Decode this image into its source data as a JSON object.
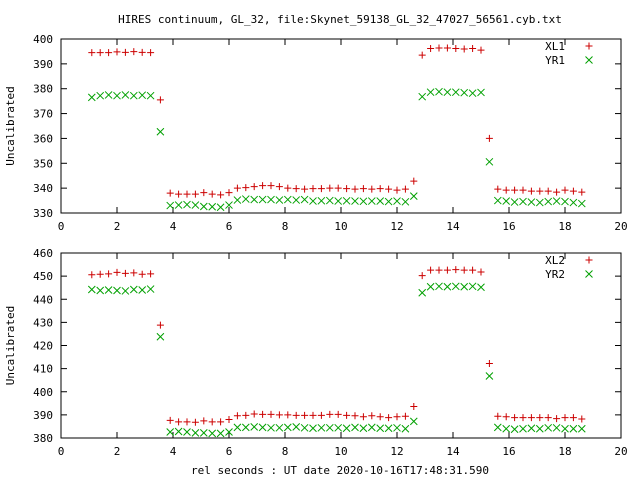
{
  "title": "HIRES continuum, GL_32, file:Skynet_59138_GL_32_47027_56561.cyb.txt",
  "xlabel": "rel seconds : UT date 2020-10-16T17:48:31.590",
  "chart_data": [
    {
      "type": "scatter",
      "ylabel": "Uncalibrated",
      "xlim": [
        0,
        20
      ],
      "ylim": [
        330,
        400
      ],
      "xticks": [
        0,
        2,
        4,
        6,
        8,
        10,
        12,
        14,
        16,
        18,
        20
      ],
      "yticks": [
        330,
        340,
        350,
        360,
        370,
        380,
        390,
        400
      ],
      "legend_position": "top-right",
      "series": [
        {
          "name": "XL1",
          "marker": "plus",
          "color": "#cc0000",
          "x": [
            1.1,
            1.4,
            1.7,
            2.0,
            2.3,
            2.6,
            2.9,
            3.2,
            3.55,
            3.9,
            4.2,
            4.5,
            4.8,
            5.1,
            5.4,
            5.7,
            6.0,
            6.3,
            6.6,
            6.9,
            7.2,
            7.5,
            7.8,
            8.1,
            8.4,
            8.7,
            9.0,
            9.3,
            9.6,
            9.9,
            10.2,
            10.5,
            10.8,
            11.1,
            11.4,
            11.7,
            12.0,
            12.3,
            12.6,
            12.9,
            13.2,
            13.5,
            13.8,
            14.1,
            14.4,
            14.7,
            15.0,
            15.3,
            15.6,
            15.9,
            16.2,
            16.5,
            16.8,
            17.1,
            17.4,
            17.7,
            18.0,
            18.3,
            18.6
          ],
          "y": [
            394.5,
            394.5,
            394.5,
            394.8,
            394.6,
            394.9,
            394.6,
            394.5,
            375.5,
            338.0,
            337.6,
            337.6,
            337.6,
            338.2,
            337.6,
            337.3,
            338.2,
            340.0,
            340.2,
            340.6,
            341.0,
            341.0,
            340.6,
            340.0,
            339.8,
            339.6,
            339.8,
            339.8,
            340.0,
            340.0,
            339.8,
            339.6,
            339.8,
            339.6,
            339.8,
            339.6,
            339.2,
            339.6,
            342.8,
            393.5,
            396.2,
            396.4,
            396.4,
            396.2,
            396.0,
            396.2,
            395.5,
            360.0,
            339.6,
            339.2,
            339.2,
            339.2,
            338.8,
            338.8,
            338.8,
            338.4,
            339.2,
            338.8,
            338.4
          ]
        },
        {
          "name": "YR1",
          "marker": "cross",
          "color": "#00a000",
          "x": [
            1.1,
            1.4,
            1.7,
            2.0,
            2.3,
            2.6,
            2.9,
            3.2,
            3.55,
            3.9,
            4.2,
            4.5,
            4.8,
            5.1,
            5.4,
            5.7,
            6.0,
            6.3,
            6.6,
            6.9,
            7.2,
            7.5,
            7.8,
            8.1,
            8.4,
            8.7,
            9.0,
            9.3,
            9.6,
            9.9,
            10.2,
            10.5,
            10.8,
            11.1,
            11.4,
            11.7,
            12.0,
            12.3,
            12.6,
            12.9,
            13.2,
            13.5,
            13.8,
            14.1,
            14.4,
            14.7,
            15.0,
            15.3,
            15.6,
            15.9,
            16.2,
            16.5,
            16.8,
            17.1,
            17.4,
            17.7,
            18.0,
            18.3,
            18.6
          ],
          "y": [
            376.5,
            377.2,
            377.5,
            377.2,
            377.5,
            377.2,
            377.4,
            377.2,
            362.7,
            333.0,
            333.2,
            333.4,
            333.2,
            332.6,
            332.5,
            332.3,
            333.2,
            335.2,
            335.6,
            335.4,
            335.4,
            335.4,
            335.2,
            335.4,
            335.2,
            335.4,
            334.8,
            334.9,
            335.0,
            334.8,
            334.9,
            334.8,
            334.7,
            334.8,
            334.8,
            334.6,
            334.8,
            334.5,
            336.8,
            376.8,
            378.6,
            378.8,
            378.6,
            378.6,
            378.4,
            378.2,
            378.5,
            350.6,
            335.0,
            334.8,
            334.4,
            334.6,
            334.4,
            334.2,
            334.6,
            334.8,
            334.6,
            334.2,
            333.8
          ]
        }
      ]
    },
    {
      "type": "scatter",
      "ylabel": "Uncalibrated",
      "xlim": [
        0,
        20
      ],
      "ylim": [
        380,
        460
      ],
      "xticks": [
        0,
        2,
        4,
        6,
        8,
        10,
        12,
        14,
        16,
        18,
        20
      ],
      "yticks": [
        380,
        390,
        400,
        410,
        420,
        430,
        440,
        450,
        460
      ],
      "legend_position": "top-right",
      "series": [
        {
          "name": "XL2",
          "marker": "plus",
          "color": "#cc0000",
          "x": [
            1.1,
            1.4,
            1.7,
            2.0,
            2.3,
            2.6,
            2.9,
            3.2,
            3.55,
            3.9,
            4.2,
            4.5,
            4.8,
            5.1,
            5.4,
            5.7,
            6.0,
            6.3,
            6.6,
            6.9,
            7.2,
            7.5,
            7.8,
            8.1,
            8.4,
            8.7,
            9.0,
            9.3,
            9.6,
            9.9,
            10.2,
            10.5,
            10.8,
            11.1,
            11.4,
            11.7,
            12.0,
            12.3,
            12.6,
            12.9,
            13.2,
            13.5,
            13.8,
            14.1,
            14.4,
            14.7,
            15.0,
            15.3,
            15.6,
            15.9,
            16.2,
            16.5,
            16.8,
            17.1,
            17.4,
            17.7,
            18.0,
            18.3,
            18.6
          ],
          "y": [
            450.6,
            450.8,
            451.0,
            451.6,
            451.2,
            451.4,
            450.8,
            451.0,
            428.8,
            387.6,
            387.0,
            387.0,
            386.8,
            387.4,
            387.0,
            387.0,
            388.0,
            389.6,
            389.8,
            390.4,
            390.2,
            390.2,
            390.0,
            390.0,
            389.8,
            389.8,
            389.8,
            389.8,
            390.2,
            390.2,
            389.8,
            389.6,
            389.2,
            389.6,
            389.2,
            388.8,
            389.2,
            389.4,
            393.6,
            450.2,
            452.6,
            452.6,
            452.6,
            452.8,
            452.6,
            452.6,
            451.8,
            412.2,
            389.4,
            389.2,
            388.8,
            388.8,
            388.8,
            388.8,
            388.8,
            388.4,
            388.8,
            388.8,
            388.2
          ]
        },
        {
          "name": "YR2",
          "marker": "cross",
          "color": "#00a000",
          "x": [
            1.1,
            1.4,
            1.7,
            2.0,
            2.3,
            2.6,
            2.9,
            3.2,
            3.55,
            3.9,
            4.2,
            4.5,
            4.8,
            5.1,
            5.4,
            5.7,
            6.0,
            6.3,
            6.6,
            6.9,
            7.2,
            7.5,
            7.8,
            8.1,
            8.4,
            8.7,
            9.0,
            9.3,
            9.6,
            9.9,
            10.2,
            10.5,
            10.8,
            11.1,
            11.4,
            11.7,
            12.0,
            12.3,
            12.6,
            12.9,
            13.2,
            13.5,
            13.8,
            14.1,
            14.4,
            14.7,
            15.0,
            15.3,
            15.6,
            15.9,
            16.2,
            16.5,
            16.8,
            17.1,
            17.4,
            17.7,
            18.0,
            18.3,
            18.6
          ],
          "y": [
            444.2,
            443.8,
            444.0,
            443.8,
            443.6,
            444.2,
            444.0,
            444.4,
            423.8,
            382.6,
            382.8,
            382.6,
            382.2,
            382.2,
            382.0,
            382.0,
            382.6,
            384.6,
            384.6,
            384.8,
            384.6,
            384.4,
            384.4,
            384.6,
            384.8,
            384.4,
            384.2,
            384.4,
            384.4,
            384.4,
            384.2,
            384.6,
            384.2,
            384.6,
            384.2,
            384.2,
            384.4,
            384.0,
            387.2,
            442.8,
            445.4,
            445.6,
            445.4,
            445.6,
            445.4,
            445.6,
            445.2,
            406.8,
            384.6,
            384.0,
            383.8,
            384.0,
            384.2,
            384.0,
            384.4,
            384.4,
            384.0,
            384.0,
            384.0
          ]
        }
      ]
    }
  ]
}
